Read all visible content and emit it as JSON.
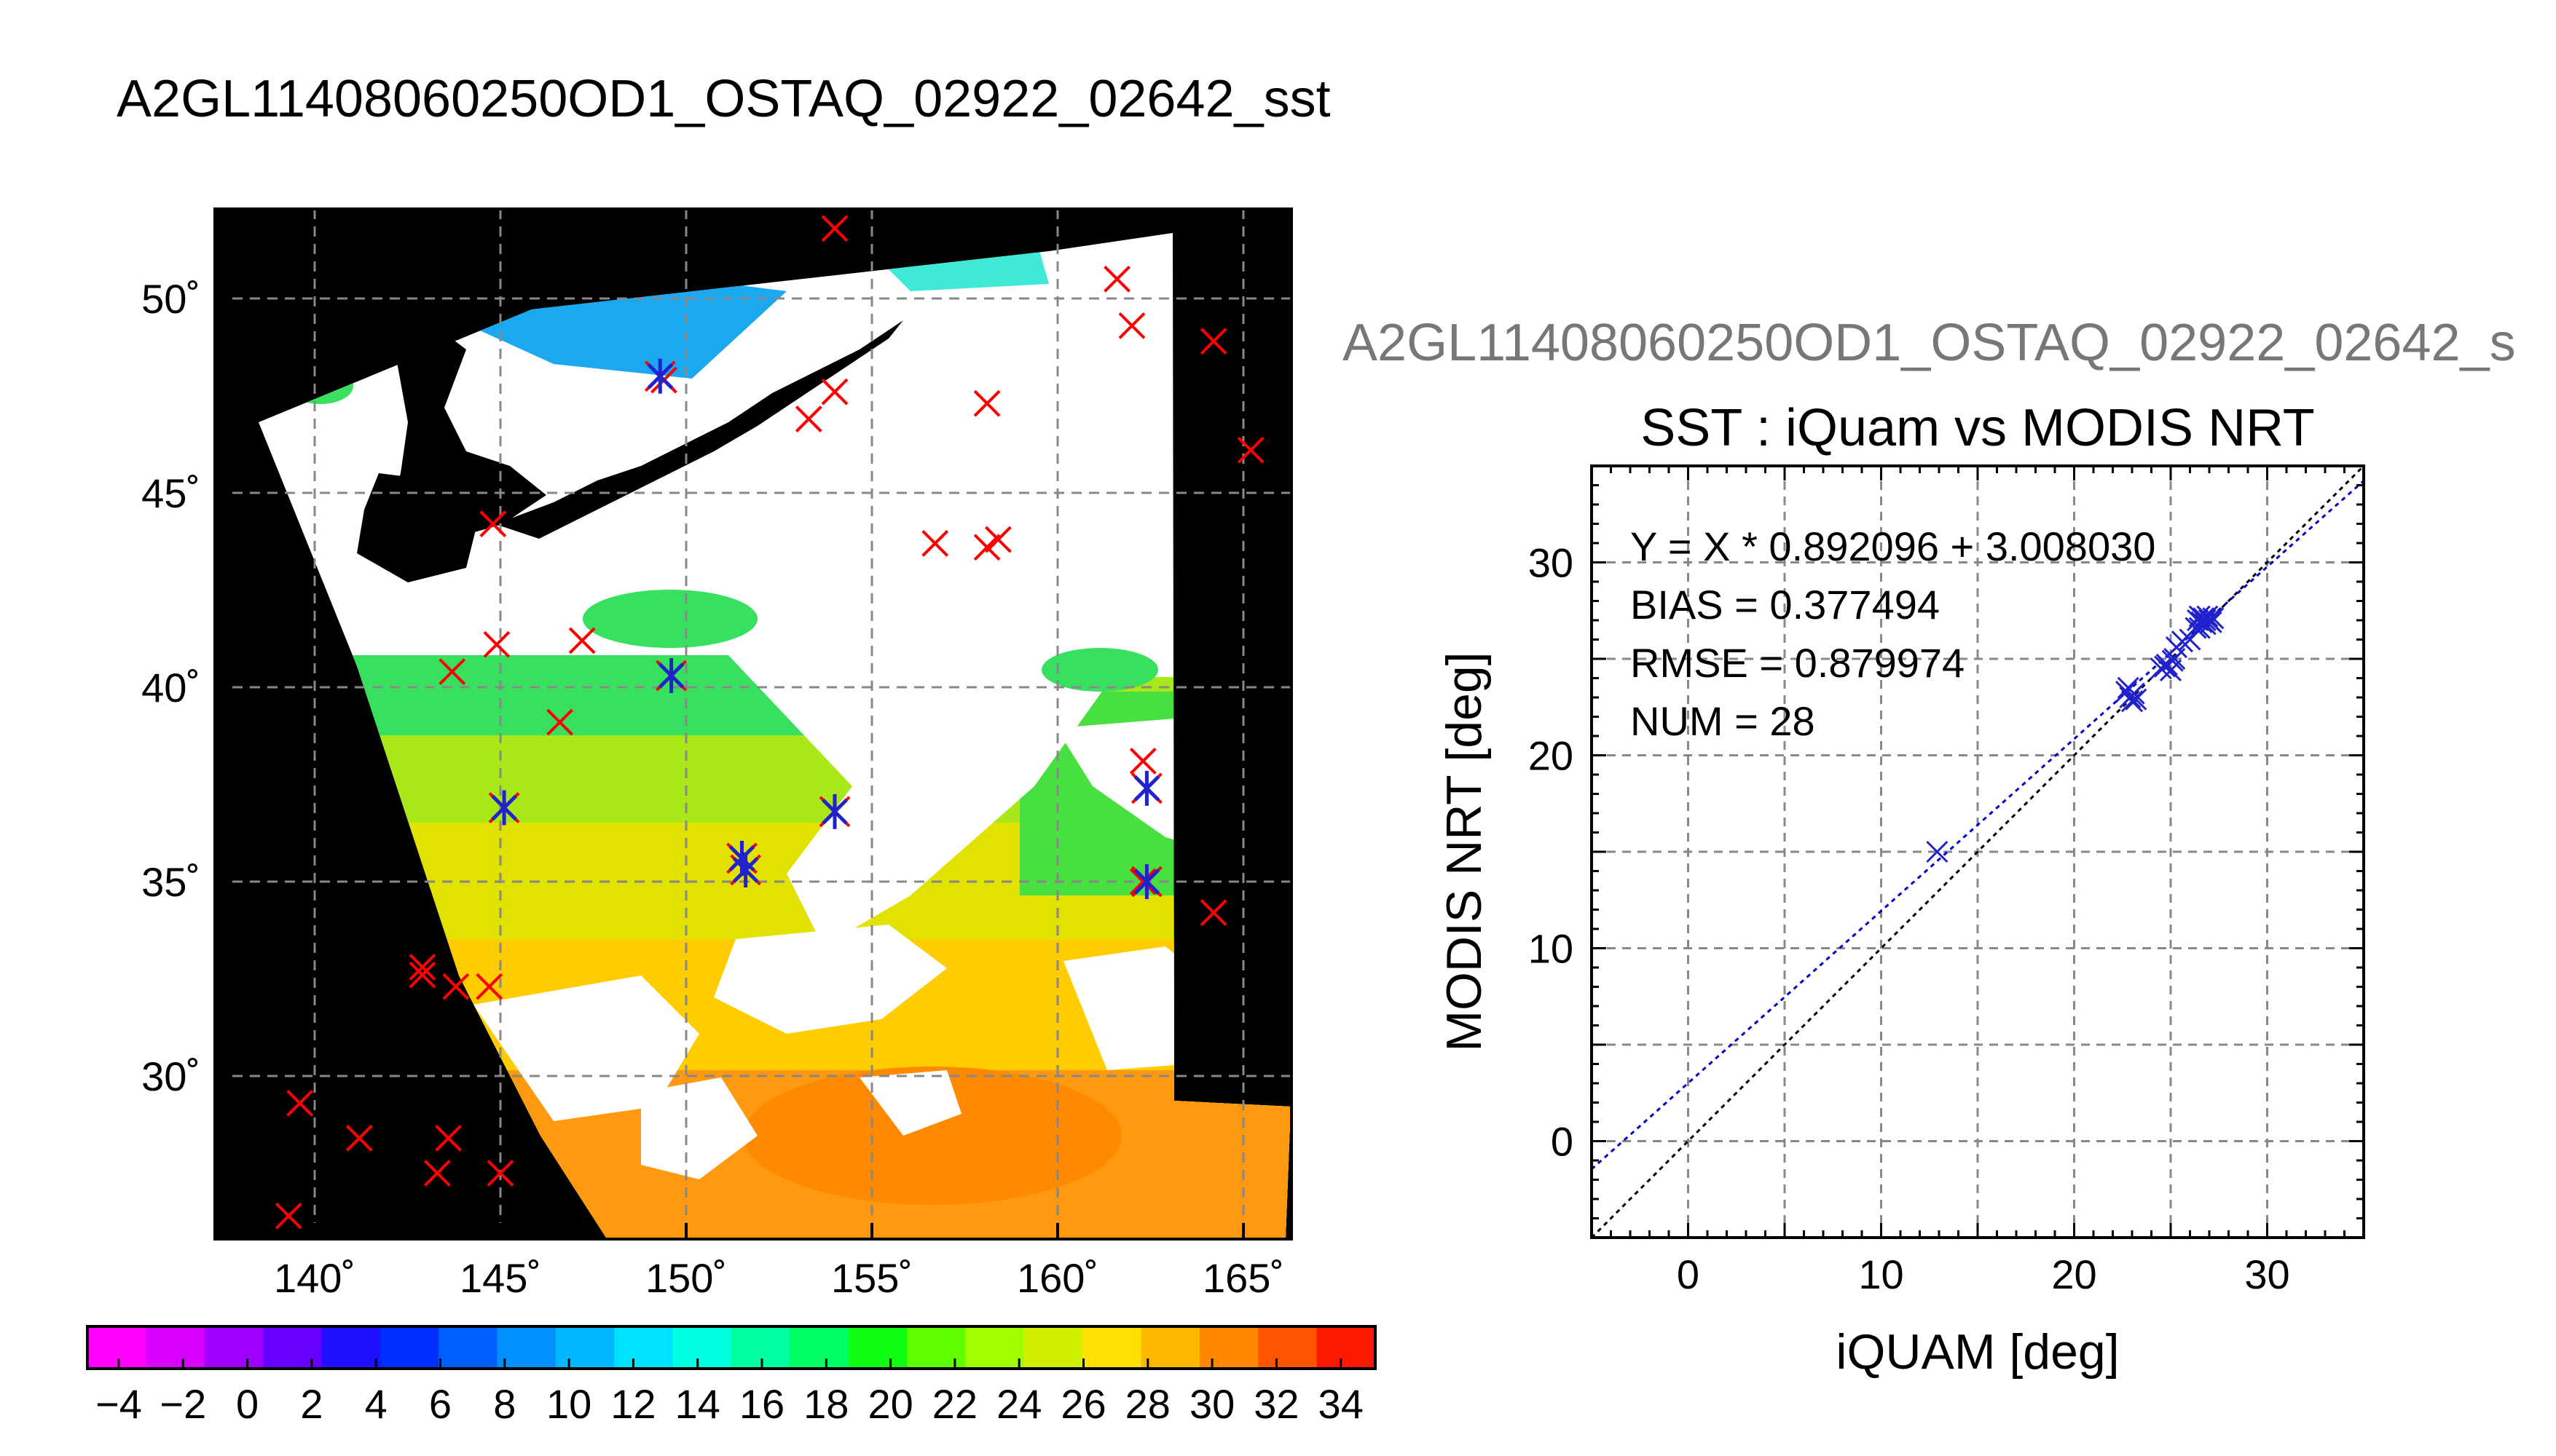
{
  "title": "A2GL11408060250OD1_OSTAQ_02922_02642_sst",
  "subtitle": "A2GL11408060250OD1_OSTAQ_02922_02642_s",
  "map": {
    "lon_ticks": [
      "140˚",
      "145˚",
      "150˚",
      "155˚",
      "160˚",
      "165˚"
    ],
    "lat_ticks": [
      "50˚",
      "45˚",
      "40˚",
      "35˚",
      "30˚"
    ],
    "red_markers": [
      [
        154.0,
        51.8
      ],
      [
        161.6,
        50.5
      ],
      [
        162.0,
        49.3
      ],
      [
        164.2,
        48.9
      ],
      [
        149.4,
        47.9
      ],
      [
        154.0,
        47.6
      ],
      [
        153.3,
        46.9
      ],
      [
        158.1,
        47.3
      ],
      [
        165.2,
        46.1
      ],
      [
        144.8,
        44.2
      ],
      [
        156.7,
        43.7
      ],
      [
        158.1,
        43.6
      ],
      [
        158.4,
        43.8
      ],
      [
        147.2,
        41.2
      ],
      [
        144.9,
        41.1
      ],
      [
        143.7,
        40.4
      ],
      [
        149.6,
        40.3
      ],
      [
        146.6,
        39.1
      ],
      [
        162.3,
        38.1
      ],
      [
        162.3,
        35.0
      ],
      [
        164.2,
        34.2
      ],
      [
        142.9,
        32.8
      ],
      [
        142.9,
        32.6
      ],
      [
        143.8,
        32.3
      ],
      [
        144.7,
        32.3
      ],
      [
        139.6,
        29.3
      ],
      [
        141.2,
        28.4
      ],
      [
        143.6,
        28.4
      ],
      [
        143.3,
        27.5
      ],
      [
        145.0,
        27.5
      ],
      [
        139.3,
        26.4
      ]
    ],
    "blue_markers": [
      [
        149.3,
        48.0
      ],
      [
        149.6,
        40.3
      ],
      [
        145.1,
        36.9
      ],
      [
        151.5,
        35.6
      ],
      [
        151.6,
        35.3
      ],
      [
        154.0,
        36.8
      ],
      [
        162.4,
        37.4
      ],
      [
        162.4,
        35.0
      ]
    ]
  },
  "colorbar": {
    "ticks": [
      "−4",
      "−2",
      "0",
      "2",
      "4",
      "6",
      "8",
      "10",
      "12",
      "14",
      "16",
      "18",
      "20",
      "22",
      "24",
      "26",
      "28",
      "30",
      "32",
      "34"
    ]
  },
  "chart_data": {
    "type": "scatter",
    "title": "SST : iQuam vs MODIS NRT",
    "xlabel": "iQUAM [deg]",
    "ylabel": "MODIS NRT [deg]",
    "xlim": [
      -5,
      35
    ],
    "ylim": [
      -5,
      35
    ],
    "x_ticks": [
      "0",
      "10",
      "20",
      "30"
    ],
    "y_ticks": [
      "0",
      "10",
      "20",
      "30"
    ],
    "grid": true,
    "stats": {
      "fit": "Y = X * 0.892096 + 3.008030",
      "bias": "BIAS = 0.377494",
      "rmse": "RMSE = 0.879974",
      "num": "NUM = 28"
    },
    "fit_line": {
      "slope": 0.892096,
      "intercept": 3.00803
    },
    "points": [
      [
        12.9,
        15.0
      ],
      [
        22.8,
        23.5
      ],
      [
        22.9,
        23.0
      ],
      [
        23.0,
        22.8
      ],
      [
        23.1,
        23.2
      ],
      [
        24.5,
        24.5
      ],
      [
        24.8,
        24.7
      ],
      [
        25.0,
        24.4
      ],
      [
        25.1,
        24.9
      ],
      [
        25.3,
        25.6
      ],
      [
        25.6,
        25.9
      ],
      [
        26.0,
        26.0
      ],
      [
        26.3,
        26.6
      ],
      [
        26.4,
        27.0
      ],
      [
        26.5,
        27.2
      ],
      [
        26.6,
        26.9
      ],
      [
        26.7,
        27.1
      ],
      [
        26.8,
        27.0
      ],
      [
        26.9,
        27.2
      ],
      [
        27.0,
        27.0
      ],
      [
        27.1,
        26.9
      ],
      [
        27.2,
        27.1
      ],
      [
        26.8,
        26.8
      ],
      [
        26.5,
        26.6
      ],
      [
        25.2,
        25.0
      ],
      [
        24.7,
        24.6
      ],
      [
        22.7,
        23.3
      ],
      [
        23.2,
        22.9
      ]
    ]
  },
  "colors": {
    "red_marker": "#ff0000",
    "blue_marker": "#2222cc",
    "fit_line": "#0000cc",
    "identity_line": "#000000"
  }
}
